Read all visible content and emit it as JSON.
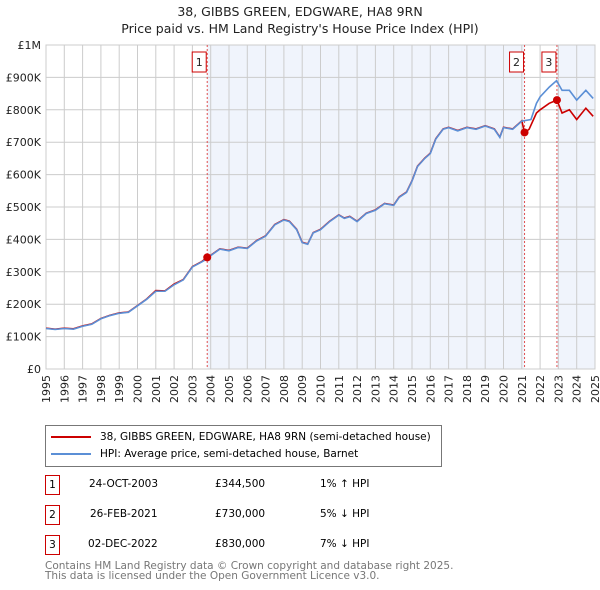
{
  "chart_data": {
    "type": "line",
    "title": "38, GIBBS GREEN, EDGWARE, HA8 9RN",
    "subtitle": "Price paid vs. HM Land Registry's House Price Index (HPI)",
    "xlim": [
      1995,
      2025
    ],
    "ylim": [
      0,
      1000000
    ],
    "x_ticks": [
      "1995",
      "1996",
      "1997",
      "1998",
      "1999",
      "2000",
      "2001",
      "2002",
      "2003",
      "2004",
      "2005",
      "2006",
      "2007",
      "2008",
      "2009",
      "2010",
      "2011",
      "2012",
      "2013",
      "2014",
      "2015",
      "2016",
      "2017",
      "2018",
      "2019",
      "2020",
      "2021",
      "2022",
      "2023",
      "2024",
      "2025"
    ],
    "y_ticks": [
      {
        "v": 0,
        "l": "£0"
      },
      {
        "v": 100000,
        "l": "£100K"
      },
      {
        "v": 200000,
        "l": "£200K"
      },
      {
        "v": 300000,
        "l": "£300K"
      },
      {
        "v": 400000,
        "l": "£400K"
      },
      {
        "v": 500000,
        "l": "£500K"
      },
      {
        "v": 600000,
        "l": "£600K"
      },
      {
        "v": 700000,
        "l": "£700K"
      },
      {
        "v": 800000,
        "l": "£800K"
      },
      {
        "v": 900000,
        "l": "£900K"
      },
      {
        "v": 1000000,
        "l": "£1M"
      }
    ],
    "grid": true,
    "series": [
      {
        "name": "HPI: Average price, semi-detached house, Barnet",
        "color": "#5b8fd6",
        "x": [
          1995,
          1995.5,
          1996,
          1996.5,
          1997,
          1997.5,
          1998,
          1998.5,
          1999,
          1999.5,
          2000,
          2000.5,
          2001,
          2001.5,
          2002,
          2002.5,
          2003,
          2003.5,
          2003.8,
          2004,
          2004.5,
          2005,
          2005.5,
          2006,
          2006.5,
          2007,
          2007.5,
          2008,
          2008.3,
          2008.7,
          2009,
          2009.3,
          2009.6,
          2010,
          2010.5,
          2011,
          2011.3,
          2011.6,
          2012,
          2012.5,
          2013,
          2013.5,
          2014,
          2014.3,
          2014.7,
          2015,
          2015.3,
          2015.7,
          2016,
          2016.3,
          2016.7,
          2017,
          2017.5,
          2018,
          2018.5,
          2019,
          2019.5,
          2019.8,
          2020,
          2020.5,
          2021,
          2021.5,
          2021.8,
          2022,
          2022.5,
          2022.9,
          2023.2,
          2023.6,
          2024,
          2024.5,
          2024.9
        ],
        "y": [
          125,
          122,
          125,
          123,
          132,
          138,
          155,
          165,
          172,
          175,
          195,
          215,
          240,
          240,
          260,
          275,
          315,
          330,
          340,
          350,
          370,
          365,
          375,
          372,
          395,
          410,
          445,
          460,
          455,
          430,
          390,
          385,
          420,
          430,
          455,
          475,
          465,
          470,
          455,
          480,
          490,
          510,
          505,
          530,
          545,
          580,
          625,
          650,
          665,
          710,
          740,
          745,
          735,
          745,
          740,
          750,
          740,
          715,
          745,
          740,
          765,
          770,
          820,
          840,
          870,
          890,
          860,
          860,
          830,
          860,
          835
        ]
      },
      {
        "name": "38, GIBBS GREEN, EDGWARE, HA8 9RN (semi-detached house)",
        "color": "#cc0000",
        "x": [
          1995,
          1995.5,
          1996,
          1996.5,
          1997,
          1997.5,
          1998,
          1998.5,
          1999,
          1999.5,
          2000,
          2000.5,
          2001,
          2001.5,
          2002,
          2002.5,
          2003,
          2003.5,
          2003.8,
          2004,
          2004.5,
          2005,
          2005.5,
          2006,
          2006.5,
          2007,
          2007.5,
          2008,
          2008.3,
          2008.7,
          2009,
          2009.3,
          2009.6,
          2010,
          2010.5,
          2011,
          2011.3,
          2011.6,
          2012,
          2012.5,
          2013,
          2013.5,
          2014,
          2014.3,
          2014.7,
          2015,
          2015.3,
          2015.7,
          2016,
          2016.3,
          2016.7,
          2017,
          2017.5,
          2018,
          2018.5,
          2019,
          2019.5,
          2019.8,
          2020,
          2020.5,
          2021,
          2021.15,
          2021.4,
          2021.8,
          2022,
          2022.5,
          2022.92,
          2023.2,
          2023.6,
          2024,
          2024.5,
          2024.9
        ],
        "y": [
          126,
          123,
          126,
          124,
          133,
          139,
          156,
          166,
          173,
          176,
          196,
          216,
          242,
          241,
          262,
          276,
          316,
          331,
          344.5,
          351,
          371,
          366,
          376,
          373,
          396,
          411,
          446,
          461,
          456,
          431,
          391,
          386,
          421,
          431,
          456,
          476,
          466,
          471,
          456,
          481,
          491,
          511,
          506,
          531,
          546,
          581,
          626,
          651,
          666,
          711,
          741,
          746,
          736,
          746,
          741,
          751,
          741,
          716,
          746,
          741,
          766,
          730,
          740,
          790,
          800,
          820,
          830,
          790,
          800,
          770,
          805,
          780
        ]
      }
    ],
    "sales": [
      {
        "n": "1",
        "x": 2003.81,
        "price": 344500,
        "date": "24-OCT-2003",
        "price_label": "£344,500",
        "hpi": "1% ↑ HPI"
      },
      {
        "n": "2",
        "x": 2021.15,
        "price": 730000,
        "date": "26-FEB-2021",
        "price_label": "£730,000",
        "hpi": "5% ↓ HPI"
      },
      {
        "n": "3",
        "x": 2022.92,
        "price": 830000,
        "date": "02-DEC-2022",
        "price_label": "£830,000",
        "hpi": "7% ↓ HPI"
      }
    ],
    "legend": [
      "38, GIBBS GREEN, EDGWARE, HA8 9RN (semi-detached house)",
      "HPI: Average price, semi-detached house, Barnet"
    ]
  },
  "footer": [
    "Contains HM Land Registry data © Crown copyright and database right 2025.",
    "This data is licensed under the Open Government Licence v3.0."
  ]
}
